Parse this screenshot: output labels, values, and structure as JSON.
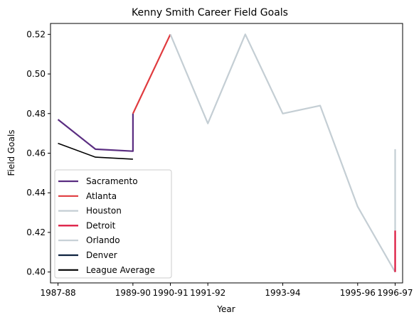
{
  "chart_data": {
    "type": "line",
    "title": "Kenny Smith Career Field Goals",
    "xlabel": "Year",
    "ylabel": "Field Goals",
    "x_tick_labels": [
      "1987-88",
      "1989-90",
      "1990-91",
      "1991-92",
      "1993-94",
      "1995-96",
      "1996-97"
    ],
    "x_tick_positions": [
      1987,
      1989,
      1990,
      1991,
      1993,
      1995,
      1996
    ],
    "xlim": [
      1986.8,
      1996.2
    ],
    "y_ticks": [
      "0.40",
      "0.42",
      "0.44",
      "0.46",
      "0.48",
      "0.50",
      "0.52"
    ],
    "ylim": [
      0.3945,
      0.5255
    ],
    "grid": false,
    "legend_position": "lower-left",
    "series": [
      {
        "name": "Sacramento",
        "color": "#5a2d81",
        "x": [
          1987,
          1988,
          1989,
          1989
        ],
        "y": [
          0.477,
          0.462,
          0.461,
          0.48
        ]
      },
      {
        "name": "Atlanta",
        "color": "#e03a3e",
        "x": [
          1989,
          1990
        ],
        "y": [
          0.48,
          0.52
        ]
      },
      {
        "name": "Houston",
        "color": "#c4ced4",
        "x": [
          1990,
          1991,
          1992,
          1993,
          1994,
          1995,
          1996
        ],
        "y": [
          0.52,
          0.475,
          0.52,
          0.48,
          0.484,
          0.433,
          0.4
        ]
      },
      {
        "name": "Detroit",
        "color": "#dc143c",
        "x": [
          1996,
          1996
        ],
        "y": [
          0.4,
          0.421
        ]
      },
      {
        "name": "Orlando",
        "color": "#c4ced4",
        "x": [
          1996,
          1996
        ],
        "y": [
          0.421,
          0.462
        ]
      },
      {
        "name": "Denver",
        "color": "#0e2240",
        "x": [],
        "y": []
      },
      {
        "name": "League Average",
        "color": "#000000",
        "x": [
          1987,
          1988,
          1989
        ],
        "y": [
          0.465,
          0.458,
          0.457
        ]
      }
    ]
  }
}
